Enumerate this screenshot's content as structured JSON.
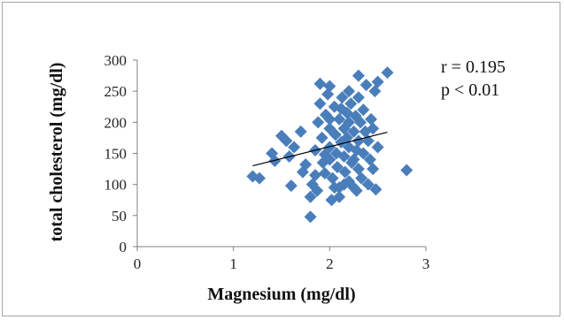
{
  "chart_data": {
    "type": "scatter",
    "title": "",
    "xlabel": "Magnesium (mg/dl)",
    "ylabel": "total cholesterol (mg/dl)",
    "xlim": [
      0,
      3
    ],
    "ylim": [
      0,
      300
    ],
    "x_ticks": [
      "0",
      "1",
      "2",
      "3"
    ],
    "y_ticks": [
      "0",
      "50",
      "100",
      "150",
      "200",
      "250",
      "300"
    ],
    "grid": false,
    "legend": "none",
    "marker": "diamond",
    "marker_color": "#4a7ebb",
    "annotations": [
      "r = 0.195",
      "p < 0.01"
    ],
    "trendline": {
      "x": [
        1.2,
        2.6
      ],
      "y": [
        130,
        184
      ],
      "color": "#000000"
    },
    "points": [
      [
        1.2,
        113
      ],
      [
        1.27,
        110
      ],
      [
        1.4,
        150
      ],
      [
        1.43,
        138
      ],
      [
        1.5,
        178
      ],
      [
        1.55,
        170
      ],
      [
        1.58,
        145
      ],
      [
        1.6,
        98
      ],
      [
        1.63,
        160
      ],
      [
        1.7,
        185
      ],
      [
        1.72,
        120
      ],
      [
        1.75,
        132
      ],
      [
        1.8,
        48
      ],
      [
        1.8,
        80
      ],
      [
        1.82,
        100
      ],
      [
        1.85,
        155
      ],
      [
        1.87,
        90
      ],
      [
        1.88,
        200
      ],
      [
        1.9,
        262
      ],
      [
        1.9,
        230
      ],
      [
        1.92,
        175
      ],
      [
        1.93,
        135
      ],
      [
        1.95,
        118
      ],
      [
        1.96,
        212
      ],
      [
        1.98,
        245
      ],
      [
        2.0,
        258
      ],
      [
        2.0,
        190
      ],
      [
        2.0,
        160
      ],
      [
        2.0,
        140
      ],
      [
        2.02,
        75
      ],
      [
        2.03,
        110
      ],
      [
        2.05,
        225
      ],
      [
        2.06,
        180
      ],
      [
        2.07,
        150
      ],
      [
        2.08,
        128
      ],
      [
        2.1,
        205
      ],
      [
        2.1,
        95
      ],
      [
        2.1,
        80
      ],
      [
        2.12,
        168
      ],
      [
        2.13,
        240
      ],
      [
        2.15,
        190
      ],
      [
        2.15,
        145
      ],
      [
        2.16,
        120
      ],
      [
        2.18,
        215
      ],
      [
        2.18,
        175
      ],
      [
        2.2,
        250
      ],
      [
        2.2,
        200
      ],
      [
        2.2,
        160
      ],
      [
        2.2,
        105
      ],
      [
        2.22,
        230
      ],
      [
        2.23,
        135
      ],
      [
        2.25,
        185
      ],
      [
        2.25,
        95
      ],
      [
        2.27,
        210
      ],
      [
        2.28,
        155
      ],
      [
        2.3,
        275
      ],
      [
        2.3,
        240
      ],
      [
        2.3,
        170
      ],
      [
        2.3,
        125
      ],
      [
        2.32,
        200
      ],
      [
        2.33,
        110
      ],
      [
        2.35,
        220
      ],
      [
        2.35,
        150
      ],
      [
        2.37,
        185
      ],
      [
        2.38,
        260
      ],
      [
        2.4,
        100
      ],
      [
        2.4,
        170
      ],
      [
        2.42,
        140
      ],
      [
        2.43,
        205
      ],
      [
        2.45,
        190
      ],
      [
        2.45,
        125
      ],
      [
        2.47,
        250
      ],
      [
        2.48,
        92
      ],
      [
        2.5,
        265
      ],
      [
        2.5,
        160
      ],
      [
        2.6,
        280
      ],
      [
        2.8,
        123
      ],
      [
        2.0,
        205
      ],
      [
        1.95,
        148
      ],
      [
        2.12,
        222
      ],
      [
        2.25,
        140
      ],
      [
        2.05,
        95
      ],
      [
        2.15,
        100
      ],
      [
        2.28,
        90
      ],
      [
        1.85,
        115
      ]
    ]
  }
}
